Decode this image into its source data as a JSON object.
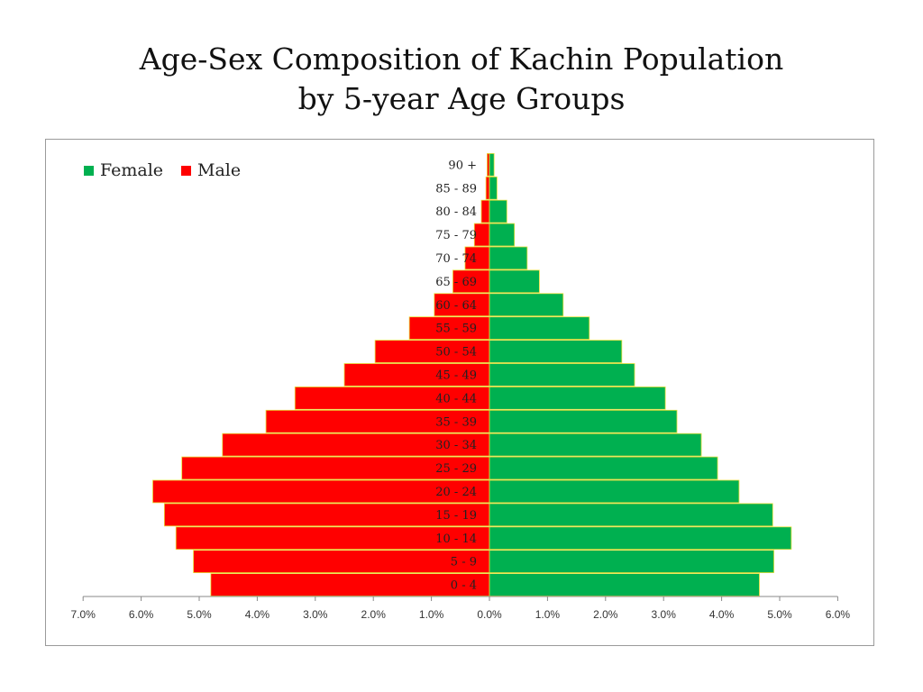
{
  "title": {
    "line1": "Age-Sex Composition of Kachin Population",
    "line2": "by 5-year Age Groups"
  },
  "colors": {
    "female": "#00b050",
    "male": "#ff0000",
    "bar_edge": "#e8e03a",
    "axis": "#888888"
  },
  "chart_data": {
    "type": "bar",
    "orientation": "horizontal",
    "subtype": "population-pyramid",
    "categories": [
      "0 - 4",
      "5 - 9",
      "10 - 14",
      "15 - 19",
      "20 - 24",
      "25 - 29",
      "30 - 34",
      "35 - 39",
      "40 - 44",
      "45 - 49",
      "50 - 54",
      "55 - 59",
      "60 - 64",
      "65 - 69",
      "70 - 74",
      "75 - 79",
      "80 - 84",
      "85 - 89",
      "90 +"
    ],
    "series": [
      {
        "name": "Female",
        "side": "right",
        "values": [
          4.65,
          4.9,
          5.2,
          4.88,
          4.3,
          3.93,
          3.65,
          3.23,
          3.03,
          2.5,
          2.28,
          1.72,
          1.27,
          0.86,
          0.65,
          0.43,
          0.3,
          0.13,
          0.08
        ]
      },
      {
        "name": "Male",
        "side": "left",
        "values": [
          4.8,
          5.1,
          5.4,
          5.6,
          5.8,
          5.3,
          4.6,
          3.85,
          3.35,
          2.5,
          1.97,
          1.38,
          0.95,
          0.63,
          0.42,
          0.26,
          0.14,
          0.06,
          0.04
        ]
      }
    ],
    "x_axis": {
      "tick_labels": [
        "7.0%",
        "6.0%",
        "5.0%",
        "4.0%",
        "3.0%",
        "2.0%",
        "1.0%",
        "0.0%",
        "1.0%",
        "2.0%",
        "3.0%",
        "4.0%",
        "5.0%",
        "6.0%"
      ],
      "range_male": [
        7.0,
        0
      ],
      "range_female": [
        0,
        6.0
      ],
      "unit": "%"
    },
    "legend": {
      "placement": "top-left",
      "entries": [
        "Female",
        "Male"
      ]
    },
    "grid": false
  }
}
